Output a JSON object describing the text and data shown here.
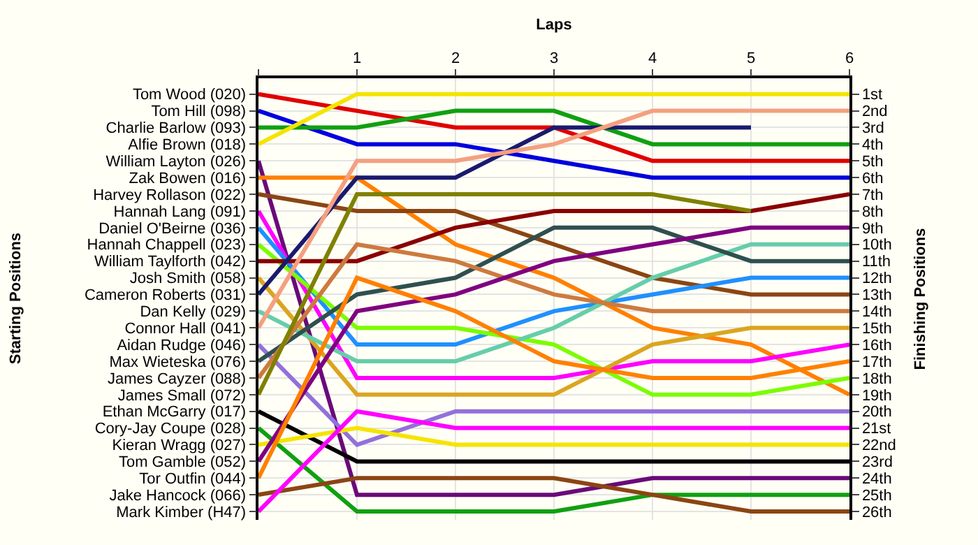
{
  "chart_data": {
    "type": "line",
    "xlabel": "Laps",
    "annotations": [
      "Starting Positions"
    ],
    "y2label": "Finishing Positions",
    "x": [
      0,
      1,
      2,
      3,
      4,
      5,
      6
    ],
    "xlim": [
      0,
      6
    ],
    "xticks": [
      {
        "value": 0,
        "label": null
      },
      1,
      2,
      3,
      4,
      5,
      6
    ],
    "y_categories": [
      "Tom Wood (020)",
      "Tom Hill (098)",
      "Charlie Barlow (093)",
      "Alfie Brown (018)",
      "William Layton (026)",
      "Zak Bowen (016)",
      "Harvey Rollason (022)",
      "Hannah Lang (091)",
      "Daniel O'Beirne (036)",
      "Hannah Chappell (023)",
      "William Taylforth (042)",
      "Josh Smith (058)",
      "Cameron Roberts (031)",
      "Dan Kelly (029)",
      "Connor Hall (041)",
      "Aidan Rudge (046)",
      "Max Wieteska (076)",
      "James Cayzer (088)",
      "James Small (072)",
      "Ethan McGarry (017)",
      "Cory-Jay Coupe (028)",
      "Kieran Wragg (027)",
      "Tom Gamble (052)",
      "Tor Outfin (044)",
      "Jake Hancock (066)",
      "Mark Kimber (H47)"
    ],
    "y2lim": [
      26.5,
      0.05
    ],
    "y2ticks": [
      {
        "value": 1,
        "label": "1st"
      },
      {
        "value": 2,
        "label": "2nd"
      },
      {
        "value": 3,
        "label": "3rd"
      },
      {
        "value": 4,
        "label": "4th"
      },
      {
        "value": 5,
        "label": "5th"
      },
      {
        "value": 6,
        "label": "6th"
      },
      {
        "value": 7,
        "label": "7th"
      },
      {
        "value": 8,
        "label": "8th"
      },
      {
        "value": 9,
        "label": "9th"
      },
      {
        "value": 10,
        "label": "10th"
      },
      {
        "value": 11,
        "label": "11th"
      },
      {
        "value": 12,
        "label": "12th"
      },
      {
        "value": 13,
        "label": "13th"
      },
      {
        "value": 14,
        "label": "14th"
      },
      {
        "value": 15,
        "label": "15th"
      },
      {
        "value": 16,
        "label": "16th"
      },
      {
        "value": 17,
        "label": "17th"
      },
      {
        "value": 18,
        "label": "18th"
      },
      {
        "value": 19,
        "label": "19th"
      },
      {
        "value": 20,
        "label": "20th"
      },
      {
        "value": 21,
        "label": "21st"
      },
      {
        "value": 22,
        "label": "22nd"
      },
      {
        "value": 23,
        "label": "23rd"
      },
      {
        "value": 24,
        "label": "24th"
      },
      {
        "value": 25,
        "label": "25th"
      },
      {
        "value": 26,
        "label": "26th"
      }
    ],
    "grid": true,
    "marker": "none",
    "line_style": "solid",
    "series": [
      {
        "axis": "y2",
        "color": "#e00000",
        "values": [
          1,
          2,
          3,
          3,
          5,
          5,
          5
        ]
      },
      {
        "axis": "y2",
        "color": "#0000dd",
        "values": [
          2,
          4,
          4,
          5,
          6,
          6,
          6
        ]
      },
      {
        "axis": "y2",
        "color": "#10a010",
        "values": [
          3,
          3,
          2,
          2,
          4,
          4,
          4
        ]
      },
      {
        "axis": "y2",
        "color": "#f5e400",
        "values": [
          4,
          1,
          1,
          1,
          1,
          1,
          1
        ]
      },
      {
        "axis": "y2",
        "color": "#6a0a7a",
        "values": [
          5,
          25,
          25,
          25,
          24,
          24,
          24
        ]
      },
      {
        "axis": "y2",
        "color": "#ff8000",
        "values": [
          6,
          6,
          10,
          12,
          15,
          16,
          19
        ]
      },
      {
        "axis": "y2",
        "color": "#8b4513",
        "values": [
          7,
          8,
          8,
          10,
          12,
          13,
          13
        ]
      },
      {
        "axis": "y2",
        "color": "#ff00ff",
        "values": [
          8,
          18,
          18,
          18,
          17,
          17,
          16
        ]
      },
      {
        "axis": "y2",
        "color": "#1e90ff",
        "values": [
          9,
          16,
          16,
          14,
          13,
          12,
          12
        ]
      },
      {
        "axis": "y2",
        "color": "#7cfc00",
        "values": [
          10,
          15,
          15,
          16,
          19,
          19,
          18
        ]
      },
      {
        "axis": "y2",
        "color": "#8b0000",
        "values": [
          11,
          11,
          9,
          8,
          8,
          8,
          7
        ]
      },
      {
        "axis": "y2",
        "color": "#daa520",
        "values": [
          12,
          19,
          19,
          19,
          16,
          15,
          15
        ]
      },
      {
        "axis": "y2",
        "color": "#1a1a6e",
        "values": [
          13,
          6,
          6,
          3,
          3,
          3,
          null
        ]
      },
      {
        "axis": "y2",
        "color": "#66cdaa",
        "values": [
          14,
          17,
          17,
          15,
          12,
          10,
          10
        ]
      },
      {
        "axis": "y2",
        "color": "#f4a080",
        "values": [
          15,
          5,
          5,
          4,
          2,
          2,
          2
        ]
      },
      {
        "axis": "y2",
        "color": "#9370db",
        "values": [
          16,
          22,
          20,
          20,
          20,
          20,
          20
        ]
      },
      {
        "axis": "y2",
        "color": "#2f4f4f",
        "values": [
          17,
          13,
          12,
          9,
          9,
          11,
          11
        ]
      },
      {
        "axis": "y2",
        "color": "#cd7a3f",
        "values": [
          18,
          10,
          11,
          13,
          14,
          14,
          14
        ]
      },
      {
        "axis": "y2",
        "color": "#808000",
        "values": [
          19,
          7,
          7,
          7,
          7,
          8,
          null
        ]
      },
      {
        "axis": "y2",
        "color": "#000000",
        "values": [
          20,
          23,
          23,
          23,
          23,
          23,
          23
        ]
      },
      {
        "axis": "y2",
        "color": "#10a010",
        "values": [
          21,
          26,
          26,
          26,
          25,
          25,
          25
        ]
      },
      {
        "axis": "y2",
        "color": "#f5e400",
        "values": [
          22,
          21,
          22,
          22,
          22,
          22,
          22
        ]
      },
      {
        "axis": "y2",
        "color": "#800080",
        "values": [
          23,
          14,
          13,
          11,
          10,
          9,
          9
        ]
      },
      {
        "axis": "y2",
        "color": "#ff8000",
        "values": [
          24,
          12,
          14,
          17,
          18,
          18,
          17
        ]
      },
      {
        "axis": "y2",
        "color": "#8b4513",
        "values": [
          25,
          24,
          24,
          24,
          25,
          26,
          26
        ]
      },
      {
        "axis": "y2",
        "color": "#ff00ff",
        "values": [
          26,
          20,
          21,
          21,
          21,
          21,
          21
        ]
      }
    ]
  }
}
